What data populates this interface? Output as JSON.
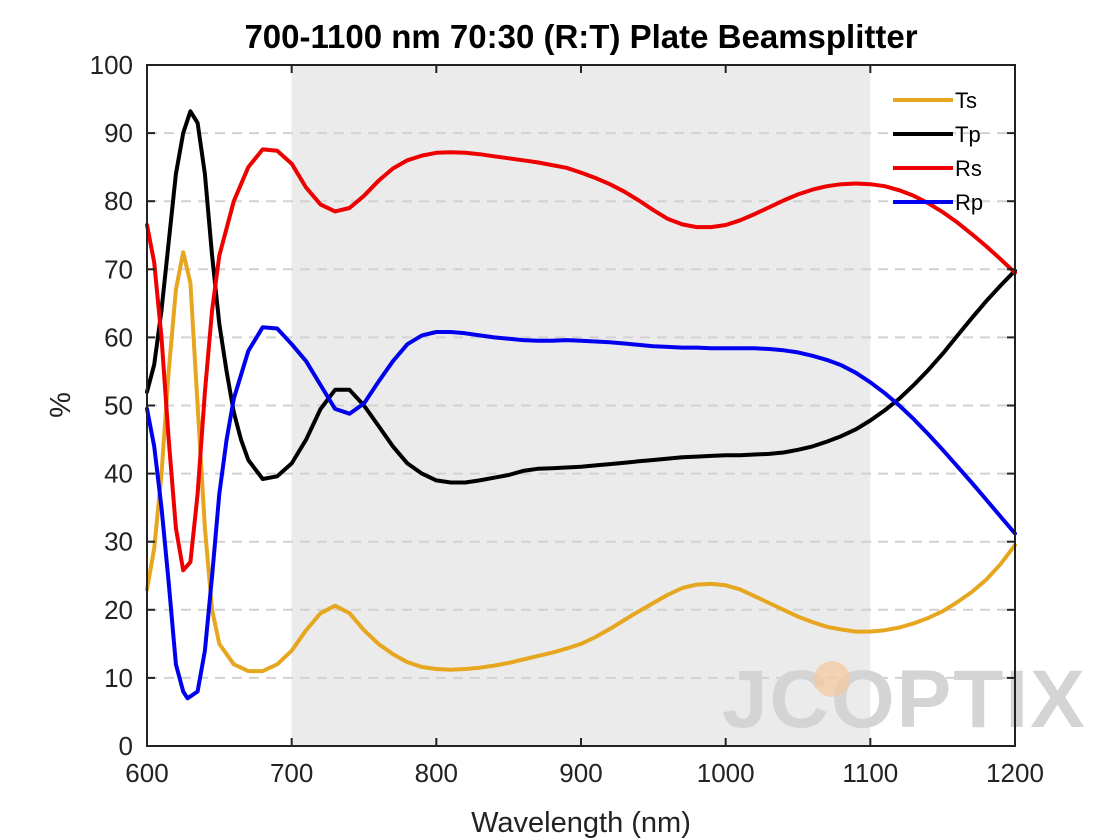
{
  "chart_data": {
    "type": "line",
    "title": "700-1100 nm 70:30 (R:T) Plate Beamsplitter",
    "xlabel": "Wavelength (nm)",
    "ylabel": "%",
    "xlim": [
      600,
      1200
    ],
    "ylim": [
      0,
      100
    ],
    "xticks": [
      600,
      700,
      800,
      900,
      1000,
      1100,
      1200
    ],
    "yticks": [
      0,
      10,
      20,
      30,
      40,
      50,
      60,
      70,
      80,
      90,
      100
    ],
    "grid": "horizontal dashed",
    "legend_position": "top-right",
    "highlight_band": [
      700,
      1100
    ],
    "watermark": "JCOPTIX",
    "series": [
      {
        "name": "Ts",
        "color": "#E6A620",
        "points": [
          [
            600,
            23
          ],
          [
            605,
            29
          ],
          [
            610,
            40
          ],
          [
            615,
            55
          ],
          [
            620,
            67
          ],
          [
            625,
            72.5
          ],
          [
            630,
            68
          ],
          [
            635,
            50
          ],
          [
            640,
            32
          ],
          [
            645,
            20
          ],
          [
            650,
            15
          ],
          [
            660,
            12
          ],
          [
            670,
            11
          ],
          [
            680,
            11
          ],
          [
            690,
            12
          ],
          [
            700,
            14
          ],
          [
            710,
            17
          ],
          [
            720,
            19.5
          ],
          [
            730,
            20.6
          ],
          [
            740,
            19.5
          ],
          [
            750,
            17
          ],
          [
            760,
            15
          ],
          [
            770,
            13.5
          ],
          [
            780,
            12.3
          ],
          [
            790,
            11.6
          ],
          [
            800,
            11.3
          ],
          [
            810,
            11.2
          ],
          [
            820,
            11.3
          ],
          [
            830,
            11.5
          ],
          [
            840,
            11.8
          ],
          [
            850,
            12.2
          ],
          [
            860,
            12.7
          ],
          [
            870,
            13.2
          ],
          [
            880,
            13.7
          ],
          [
            890,
            14.3
          ],
          [
            900,
            15
          ],
          [
            910,
            16
          ],
          [
            920,
            17.2
          ],
          [
            930,
            18.5
          ],
          [
            940,
            19.8
          ],
          [
            950,
            21
          ],
          [
            960,
            22.2
          ],
          [
            970,
            23.2
          ],
          [
            980,
            23.7
          ],
          [
            990,
            23.8
          ],
          [
            1000,
            23.6
          ],
          [
            1010,
            23
          ],
          [
            1020,
            22
          ],
          [
            1030,
            21
          ],
          [
            1040,
            20
          ],
          [
            1050,
            19
          ],
          [
            1060,
            18.2
          ],
          [
            1070,
            17.5
          ],
          [
            1080,
            17.1
          ],
          [
            1090,
            16.8
          ],
          [
            1100,
            16.8
          ],
          [
            1110,
            17
          ],
          [
            1120,
            17.4
          ],
          [
            1130,
            18
          ],
          [
            1140,
            18.8
          ],
          [
            1150,
            19.8
          ],
          [
            1160,
            21.1
          ],
          [
            1170,
            22.6
          ],
          [
            1180,
            24.4
          ],
          [
            1190,
            26.7
          ],
          [
            1200,
            29.5
          ]
        ]
      },
      {
        "name": "Tp",
        "color": "#000000",
        "points": [
          [
            600,
            52
          ],
          [
            605,
            56
          ],
          [
            610,
            64
          ],
          [
            615,
            74
          ],
          [
            620,
            84
          ],
          [
            625,
            90
          ],
          [
            630,
            93.2
          ],
          [
            635,
            91.5
          ],
          [
            640,
            84
          ],
          [
            645,
            72
          ],
          [
            650,
            62
          ],
          [
            655,
            55
          ],
          [
            660,
            49
          ],
          [
            665,
            45
          ],
          [
            670,
            42
          ],
          [
            680,
            39.2
          ],
          [
            690,
            39.6
          ],
          [
            700,
            41.5
          ],
          [
            710,
            45
          ],
          [
            720,
            49.5
          ],
          [
            730,
            52.3
          ],
          [
            740,
            52.3
          ],
          [
            750,
            50
          ],
          [
            760,
            47
          ],
          [
            770,
            44
          ],
          [
            780,
            41.5
          ],
          [
            790,
            40
          ],
          [
            800,
            39
          ],
          [
            810,
            38.7
          ],
          [
            820,
            38.7
          ],
          [
            830,
            39
          ],
          [
            840,
            39.4
          ],
          [
            850,
            39.8
          ],
          [
            860,
            40.4
          ],
          [
            870,
            40.7
          ],
          [
            880,
            40.8
          ],
          [
            890,
            40.9
          ],
          [
            900,
            41
          ],
          [
            910,
            41.2
          ],
          [
            920,
            41.4
          ],
          [
            930,
            41.6
          ],
          [
            940,
            41.8
          ],
          [
            950,
            42
          ],
          [
            960,
            42.2
          ],
          [
            970,
            42.4
          ],
          [
            980,
            42.5
          ],
          [
            990,
            42.6
          ],
          [
            1000,
            42.7
          ],
          [
            1010,
            42.7
          ],
          [
            1020,
            42.8
          ],
          [
            1030,
            42.9
          ],
          [
            1040,
            43.1
          ],
          [
            1050,
            43.5
          ],
          [
            1060,
            44
          ],
          [
            1070,
            44.7
          ],
          [
            1080,
            45.5
          ],
          [
            1090,
            46.5
          ],
          [
            1100,
            47.8
          ],
          [
            1110,
            49.3
          ],
          [
            1120,
            51
          ],
          [
            1130,
            53
          ],
          [
            1140,
            55.2
          ],
          [
            1150,
            57.6
          ],
          [
            1160,
            60.2
          ],
          [
            1170,
            62.8
          ],
          [
            1180,
            65.3
          ],
          [
            1190,
            67.6
          ],
          [
            1200,
            69.8
          ]
        ]
      },
      {
        "name": "Rs",
        "color": "#EE0000",
        "points": [
          [
            600,
            76.5
          ],
          [
            605,
            71
          ],
          [
            610,
            60
          ],
          [
            615,
            45
          ],
          [
            620,
            32
          ],
          [
            625,
            25.8
          ],
          [
            630,
            27
          ],
          [
            635,
            37
          ],
          [
            640,
            52
          ],
          [
            645,
            64
          ],
          [
            650,
            72
          ],
          [
            660,
            80
          ],
          [
            670,
            85
          ],
          [
            680,
            87.6
          ],
          [
            690,
            87.4
          ],
          [
            700,
            85.5
          ],
          [
            710,
            82
          ],
          [
            720,
            79.5
          ],
          [
            730,
            78.5
          ],
          [
            740,
            79
          ],
          [
            750,
            80.8
          ],
          [
            760,
            83
          ],
          [
            770,
            84.8
          ],
          [
            780,
            86
          ],
          [
            790,
            86.7
          ],
          [
            800,
            87.1
          ],
          [
            810,
            87.2
          ],
          [
            820,
            87.1
          ],
          [
            830,
            86.9
          ],
          [
            840,
            86.6
          ],
          [
            850,
            86.3
          ],
          [
            860,
            86
          ],
          [
            870,
            85.7
          ],
          [
            880,
            85.3
          ],
          [
            890,
            84.9
          ],
          [
            900,
            84.2
          ],
          [
            910,
            83.4
          ],
          [
            920,
            82.5
          ],
          [
            930,
            81.4
          ],
          [
            940,
            80.1
          ],
          [
            950,
            78.7
          ],
          [
            960,
            77.4
          ],
          [
            970,
            76.6
          ],
          [
            980,
            76.2
          ],
          [
            990,
            76.2
          ],
          [
            1000,
            76.5
          ],
          [
            1010,
            77.2
          ],
          [
            1020,
            78.1
          ],
          [
            1030,
            79.1
          ],
          [
            1040,
            80.1
          ],
          [
            1050,
            81
          ],
          [
            1060,
            81.7
          ],
          [
            1070,
            82.2
          ],
          [
            1080,
            82.5
          ],
          [
            1090,
            82.6
          ],
          [
            1100,
            82.5
          ],
          [
            1110,
            82.2
          ],
          [
            1120,
            81.6
          ],
          [
            1130,
            80.8
          ],
          [
            1140,
            79.7
          ],
          [
            1150,
            78.4
          ],
          [
            1160,
            76.9
          ],
          [
            1170,
            75.2
          ],
          [
            1180,
            73.4
          ],
          [
            1190,
            71.5
          ],
          [
            1200,
            69.5
          ]
        ]
      },
      {
        "name": "Rp",
        "color": "#0000EE",
        "points": [
          [
            600,
            49.5
          ],
          [
            605,
            44
          ],
          [
            610,
            35
          ],
          [
            615,
            24
          ],
          [
            620,
            12
          ],
          [
            625,
            8
          ],
          [
            628,
            7
          ],
          [
            635,
            8
          ],
          [
            640,
            14
          ],
          [
            645,
            25
          ],
          [
            650,
            37
          ],
          [
            655,
            45
          ],
          [
            660,
            51
          ],
          [
            670,
            58
          ],
          [
            680,
            61.5
          ],
          [
            690,
            61.3
          ],
          [
            700,
            59
          ],
          [
            710,
            56.5
          ],
          [
            720,
            53
          ],
          [
            730,
            49.5
          ],
          [
            740,
            48.8
          ],
          [
            750,
            50.3
          ],
          [
            760,
            53.5
          ],
          [
            770,
            56.5
          ],
          [
            780,
            59
          ],
          [
            790,
            60.3
          ],
          [
            800,
            60.8
          ],
          [
            810,
            60.8
          ],
          [
            820,
            60.6
          ],
          [
            830,
            60.3
          ],
          [
            840,
            60
          ],
          [
            850,
            59.8
          ],
          [
            860,
            59.6
          ],
          [
            870,
            59.5
          ],
          [
            880,
            59.5
          ],
          [
            890,
            59.6
          ],
          [
            900,
            59.5
          ],
          [
            910,
            59.4
          ],
          [
            920,
            59.3
          ],
          [
            930,
            59.1
          ],
          [
            940,
            58.9
          ],
          [
            950,
            58.7
          ],
          [
            960,
            58.6
          ],
          [
            970,
            58.5
          ],
          [
            980,
            58.5
          ],
          [
            990,
            58.4
          ],
          [
            1000,
            58.4
          ],
          [
            1010,
            58.4
          ],
          [
            1020,
            58.4
          ],
          [
            1030,
            58.3
          ],
          [
            1040,
            58.1
          ],
          [
            1050,
            57.8
          ],
          [
            1060,
            57.3
          ],
          [
            1070,
            56.7
          ],
          [
            1080,
            55.9
          ],
          [
            1090,
            54.8
          ],
          [
            1100,
            53.4
          ],
          [
            1110,
            51.8
          ],
          [
            1120,
            50
          ],
          [
            1130,
            48
          ],
          [
            1140,
            45.8
          ],
          [
            1150,
            43.5
          ],
          [
            1160,
            41.1
          ],
          [
            1170,
            38.7
          ],
          [
            1180,
            36.2
          ],
          [
            1190,
            33.7
          ],
          [
            1200,
            31.2
          ]
        ]
      }
    ]
  }
}
